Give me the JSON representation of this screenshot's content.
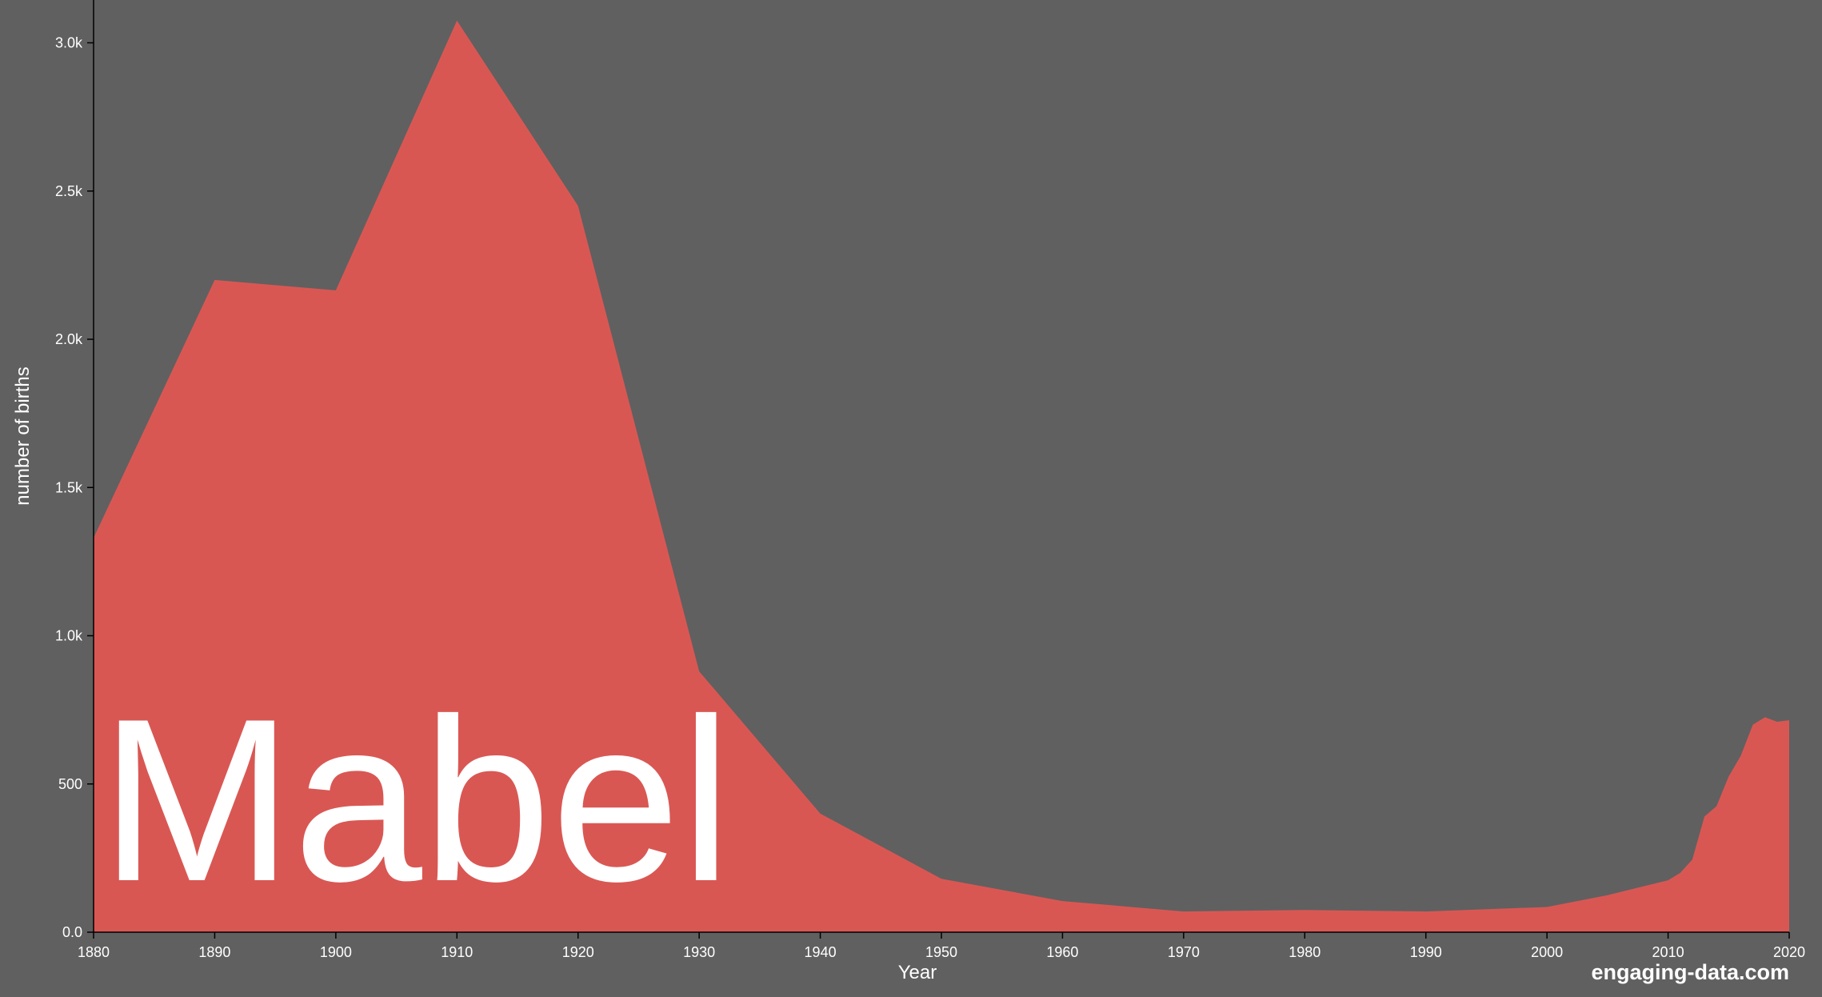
{
  "colors": {
    "background": "#606060",
    "area": "#d95753",
    "axis": "#000000",
    "text": "#ffffff"
  },
  "name_label": "Mabel",
  "watermark": "engaging-data.com",
  "chart_data": {
    "type": "area",
    "xlabel": "Year",
    "ylabel": "number of births",
    "xlim": [
      1880,
      2020
    ],
    "ylim": [
      0,
      3100
    ],
    "x_ticks": [
      1880,
      1890,
      1900,
      1910,
      1920,
      1930,
      1940,
      1950,
      1960,
      1970,
      1980,
      1990,
      2000,
      2010,
      2020
    ],
    "y_ticks": [
      0,
      500,
      1000,
      1500,
      2000,
      2500,
      3000
    ],
    "y_tick_labels": [
      "0.0",
      "500",
      "1.0k",
      "1.5k",
      "2.0k",
      "2.5k",
      "3.0k"
    ],
    "grid": false,
    "series": [
      {
        "x": [
          1880,
          1890,
          1900,
          1910,
          1920,
          1930,
          1940,
          1950,
          1960,
          1970,
          1980,
          1990,
          2000,
          2005,
          2010,
          2011,
          2012,
          2013,
          2014,
          2015,
          2016,
          2017,
          2018,
          2019,
          2020
        ],
        "values": [
          1330,
          2200,
          2165,
          3075,
          2450,
          880,
          400,
          180,
          105,
          70,
          75,
          70,
          85,
          125,
          175,
          200,
          245,
          390,
          425,
          525,
          595,
          700,
          725,
          710,
          715
        ]
      }
    ]
  }
}
